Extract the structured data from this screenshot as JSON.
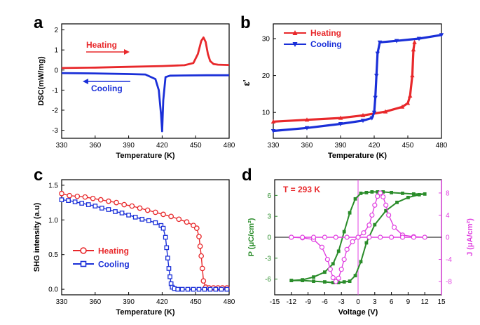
{
  "chart_data": [
    {
      "panel": "a",
      "type": "line",
      "xlabel": "Temperature (K)",
      "ylabel": "DSC(mW/mg)",
      "xlim": [
        330,
        480
      ],
      "ylim": [
        -3.4,
        2.3
      ],
      "xticks": [
        330,
        360,
        390,
        420,
        450,
        480
      ],
      "yticks": [
        -3,
        -2,
        -1,
        0,
        1,
        2
      ],
      "series": [
        {
          "name": "Heating",
          "color": "#e8282b",
          "x": [
            330,
            360,
            390,
            420,
            440,
            448,
            452,
            455,
            457,
            459,
            461,
            463,
            466,
            470,
            480
          ],
          "y": [
            0.1,
            0.12,
            0.16,
            0.2,
            0.24,
            0.35,
            0.8,
            1.45,
            1.62,
            1.4,
            0.8,
            0.45,
            0.3,
            0.27,
            0.25
          ]
        },
        {
          "name": "Cooling",
          "color": "#1a2fd8",
          "x": [
            330,
            360,
            390,
            405,
            414,
            417,
            419,
            420,
            421,
            423,
            427,
            440,
            460,
            480
          ],
          "y": [
            -0.15,
            -0.17,
            -0.2,
            -0.22,
            -0.45,
            -1.0,
            -2.2,
            -3.05,
            -1.5,
            -0.35,
            -0.28,
            -0.27,
            -0.26,
            -0.26
          ]
        }
      ]
    },
    {
      "panel": "b",
      "type": "line",
      "xlabel": "Temperature (K)",
      "ylabel": "ε'",
      "xlim": [
        330,
        480
      ],
      "ylim": [
        3,
        34
      ],
      "xticks": [
        330,
        360,
        390,
        420,
        450,
        480
      ],
      "yticks": [
        10,
        20,
        30
      ],
      "series": [
        {
          "name": "Heating",
          "color": "#e8282b",
          "x": [
            330,
            360,
            390,
            410,
            430,
            445,
            450,
            452,
            454,
            455,
            456
          ],
          "y": [
            7.5,
            8.0,
            8.5,
            9.2,
            10.2,
            11.5,
            12.5,
            14.5,
            20.0,
            27.0,
            29.0
          ]
        },
        {
          "name": "Cooling",
          "color": "#1a2fd8",
          "x": [
            480,
            460,
            440,
            425,
            423,
            422,
            421,
            420,
            418,
            410,
            390,
            360,
            330
          ],
          "y": [
            31.0,
            30.0,
            29.4,
            29.0,
            26.0,
            20.0,
            14.0,
            10.0,
            8.5,
            7.8,
            6.9,
            5.8,
            5.0
          ]
        }
      ]
    },
    {
      "panel": "c",
      "type": "scatter",
      "xlabel": "Temperature (K)",
      "ylabel": "SHG intensity (a.u)",
      "xlim": [
        330,
        480
      ],
      "ylim": [
        -0.08,
        1.58
      ],
      "xticks": [
        330,
        360,
        390,
        420,
        450,
        480
      ],
      "yticks": [
        0.0,
        0.5,
        1.0,
        1.5
      ],
      "series": [
        {
          "name": "Heating",
          "color": "#e8282b",
          "x": [
            330,
            337,
            344,
            351,
            358,
            365,
            372,
            379,
            386,
            393,
            400,
            407,
            414,
            421,
            428,
            435,
            442,
            448,
            451,
            453,
            454,
            455,
            456,
            457,
            459,
            462,
            466,
            470,
            474,
            478
          ],
          "y": [
            1.38,
            1.35,
            1.34,
            1.33,
            1.31,
            1.29,
            1.27,
            1.25,
            1.22,
            1.2,
            1.17,
            1.14,
            1.11,
            1.08,
            1.05,
            1.01,
            0.97,
            0.92,
            0.88,
            0.76,
            0.62,
            0.48,
            0.3,
            0.12,
            0.03,
            0.02,
            0.02,
            0.02,
            0.02,
            0.02
          ]
        },
        {
          "name": "Cooling",
          "color": "#1a2fd8",
          "x": [
            330,
            336,
            342,
            348,
            354,
            360,
            366,
            372,
            378,
            384,
            390,
            396,
            402,
            408,
            414,
            419,
            421,
            423,
            424,
            425,
            426,
            427,
            428,
            429,
            431,
            434,
            438,
            443,
            448,
            453,
            458,
            463,
            468,
            473,
            478
          ],
          "y": [
            1.29,
            1.28,
            1.26,
            1.24,
            1.22,
            1.2,
            1.17,
            1.15,
            1.12,
            1.1,
            1.07,
            1.04,
            1.01,
            0.99,
            0.96,
            0.92,
            0.88,
            0.75,
            0.6,
            0.45,
            0.3,
            0.18,
            0.08,
            0.03,
            0.01,
            0.0,
            0.0,
            0.0,
            0.0,
            0.0,
            0.0,
            0.0,
            0.0,
            0.0,
            0.0
          ]
        }
      ]
    },
    {
      "panel": "d",
      "type": "scatter",
      "annotation": "T = 293 K",
      "xlabel": "Voltage (V)",
      "ylabel_left": "P (μC/cm²)",
      "ylabel_right": "J (μA/cm²)",
      "xlim": [
        -15,
        15
      ],
      "ylim_left": [
        -8.25,
        8.25
      ],
      "ylim_right": [
        -10.4,
        10.4
      ],
      "xticks": [
        -15,
        -12,
        -9,
        -6,
        -3,
        0,
        3,
        6,
        9,
        12,
        15
      ],
      "yticks_left": [
        -6,
        -3,
        0,
        3,
        6
      ],
      "yticks_right": [
        -8,
        -4,
        0,
        4,
        8
      ],
      "series": [
        {
          "name": "P",
          "axis": "left",
          "color": "#2a8c2a",
          "x": [
            -12,
            -10,
            -8,
            -6,
            -4.5,
            -3.5,
            -2.5,
            -1.5,
            -0.5,
            0.5,
            1.5,
            2.5,
            3.5,
            4.5,
            6,
            8,
            10,
            12,
            11,
            9,
            7,
            5,
            3,
            1.5,
            0.5,
            -0.5,
            -1.5,
            -2.5,
            -3.5,
            -4.5,
            -6,
            -8,
            -10,
            -12
          ],
          "y": [
            -6.2,
            -6.1,
            -5.7,
            -5.0,
            -3.8,
            -2.0,
            0.8,
            3.5,
            5.5,
            6.3,
            6.4,
            6.5,
            6.5,
            6.5,
            6.4,
            6.3,
            6.2,
            6.2,
            6.1,
            5.7,
            5.0,
            3.8,
            1.8,
            -0.8,
            -3.5,
            -5.5,
            -6.3,
            -6.4,
            -6.5,
            -6.5,
            -6.4,
            -6.3,
            -6.2,
            -6.2
          ]
        },
        {
          "name": "J",
          "axis": "right",
          "color": "#e040e0",
          "x": [
            -12,
            -10,
            -8,
            -6.5,
            -5.5,
            -5,
            -4.5,
            -4,
            -3.5,
            -3,
            -2.5,
            -2,
            -1,
            0,
            1,
            2,
            2.5,
            3,
            3.5,
            4,
            4.5,
            5,
            5.5,
            6.5,
            8,
            10,
            12,
            10,
            8,
            6,
            4,
            2,
            0,
            -2,
            -4,
            -6,
            -8,
            -10,
            -12
          ],
          "y": [
            0,
            -0.1,
            -0.4,
            -1.8,
            -4.0,
            -5.8,
            -7.3,
            -8.0,
            -7.4,
            -5.8,
            -4.0,
            -2.2,
            -0.8,
            0,
            0.8,
            2.2,
            4.0,
            5.8,
            7.4,
            8.0,
            7.3,
            5.8,
            4.0,
            1.8,
            0.4,
            0.1,
            0,
            0,
            0,
            0,
            0,
            0,
            0,
            0,
            0,
            0,
            0,
            0,
            0
          ]
        }
      ]
    }
  ],
  "panels": {
    "a": {
      "letter": "a",
      "heating_label": "Heating",
      "cooling_label": "Cooling"
    },
    "b": {
      "letter": "b",
      "legend": [
        "Heating",
        "Cooling"
      ]
    },
    "c": {
      "letter": "c",
      "legend": [
        "Heating",
        "Cooling"
      ]
    },
    "d": {
      "letter": "d"
    }
  }
}
